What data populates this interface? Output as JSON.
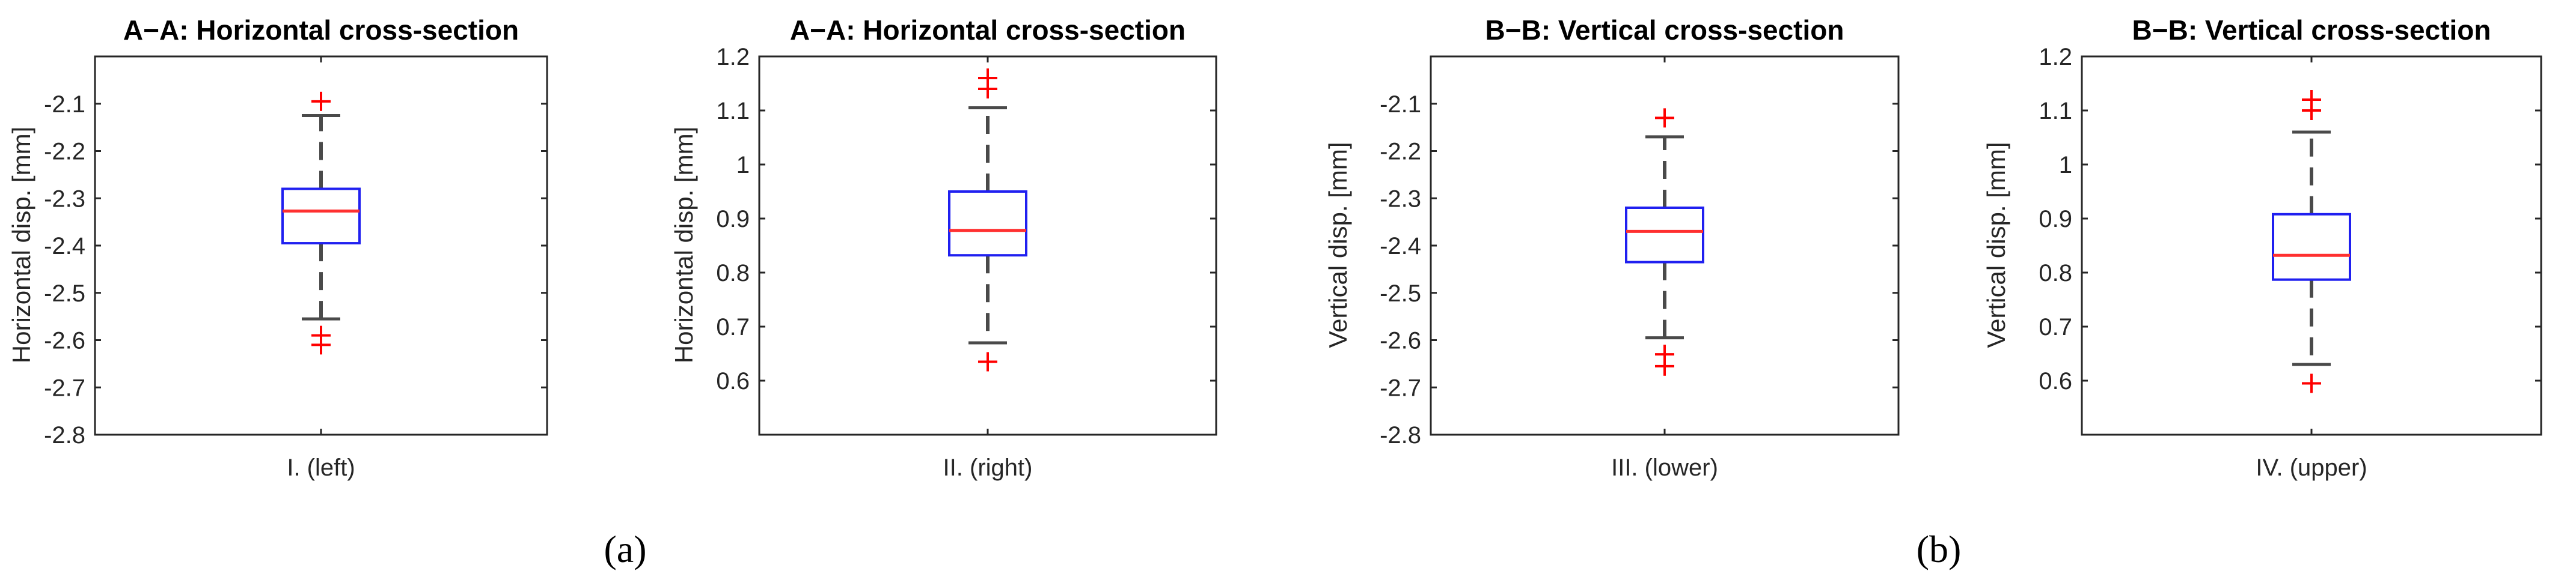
{
  "colors": {
    "box": "#2020f0",
    "median": "#ff3030",
    "whisker": "#4a4a4a",
    "outlier": "#ff0000",
    "axes": "#262626"
  },
  "panel_labels": [
    "(a)",
    "(b)"
  ],
  "chart_data": [
    {
      "type": "box",
      "title": "A−A: Horizontal cross-section",
      "ylabel": "Horizontal disp. [mm]",
      "category": "I. (left)",
      "ylim": [
        -2.8,
        -2.0
      ],
      "yticks": [
        -2.8,
        -2.7,
        -2.6,
        -2.5,
        -2.4,
        -2.3,
        -2.2,
        -2.1
      ],
      "ytick_labels": [
        "-2.8",
        "-2.7",
        "-2.6",
        "-2.5",
        "-2.4",
        "-2.3",
        "-2.2",
        "-2.1"
      ],
      "stats": {
        "lower_whisker": -2.555,
        "q1": -2.395,
        "median": -2.327,
        "q3": -2.28,
        "upper_whisker": -2.125
      },
      "outliers": [
        -2.095,
        -2.59,
        -2.61
      ]
    },
    {
      "type": "box",
      "title": "A−A: Horizontal cross-section",
      "ylabel": "Horizontal disp. [mm]",
      "category": "II. (right)",
      "ylim": [
        0.5,
        1.2
      ],
      "yticks": [
        0.6,
        0.7,
        0.8,
        0.9,
        1.0,
        1.1,
        1.2
      ],
      "ytick_labels": [
        "0.6",
        "0.7",
        "0.8",
        "0.9",
        "1",
        "1.1",
        "1.2"
      ],
      "stats": {
        "lower_whisker": 0.67,
        "q1": 0.832,
        "median": 0.878,
        "q3": 0.95,
        "upper_whisker": 1.105
      },
      "outliers": [
        1.14,
        1.16,
        0.635
      ]
    },
    {
      "type": "box",
      "title": "B−B: Vertical cross-section",
      "ylabel": "Vertical disp. [mm]",
      "category": "III. (lower)",
      "ylim": [
        -2.8,
        -2.0
      ],
      "yticks": [
        -2.8,
        -2.7,
        -2.6,
        -2.5,
        -2.4,
        -2.3,
        -2.2,
        -2.1
      ],
      "ytick_labels": [
        "-2.8",
        "-2.7",
        "-2.6",
        "-2.5",
        "-2.4",
        "-2.3",
        "-2.2",
        "-2.1"
      ],
      "stats": {
        "lower_whisker": -2.595,
        "q1": -2.435,
        "median": -2.37,
        "q3": -2.32,
        "upper_whisker": -2.17
      },
      "outliers": [
        -2.13,
        -2.63,
        -2.655
      ]
    },
    {
      "type": "box",
      "title": "B−B: Vertical cross-section",
      "ylabel": "Vertical disp. [mm]",
      "category": "IV. (upper)",
      "ylim": [
        0.5,
        1.2
      ],
      "yticks": [
        0.6,
        0.7,
        0.8,
        0.9,
        1.0,
        1.1,
        1.2
      ],
      "ytick_labels": [
        "0.6",
        "0.7",
        "0.8",
        "0.9",
        "1",
        "1.1",
        "1.2"
      ],
      "stats": {
        "lower_whisker": 0.63,
        "q1": 0.787,
        "median": 0.832,
        "q3": 0.908,
        "upper_whisker": 1.06
      },
      "outliers": [
        1.1,
        1.12,
        0.595
      ]
    }
  ]
}
